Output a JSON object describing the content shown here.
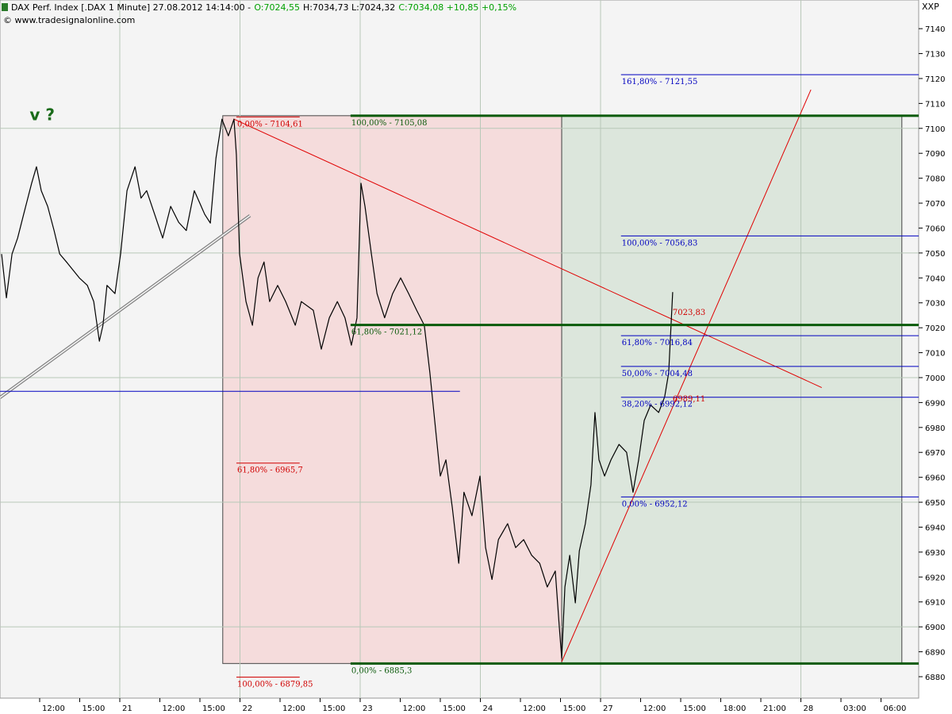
{
  "chart_data": {
    "type": "line",
    "title": "DAX Perf. Index [.DAX 1 Minute] 27.08.2012 14:14:00 -",
    "quote": [
      {
        "label": "O:7024,55",
        "color": "#00a000"
      },
      {
        "label": "H:7034,73 L:7024,32",
        "color": "#000000"
      },
      {
        "label": "C:7034,08 +10,85 +0,15%",
        "color": "#00a000"
      }
    ],
    "source": "© www.tradesignalonline.com",
    "corner_label": "XXP",
    "xlim": [
      -0.99,
      21.94
    ],
    "ylim": [
      6871.4,
      7151.5
    ],
    "xticks": [
      {
        "value": 0,
        "label": "12:00"
      },
      {
        "value": 1,
        "label": "15:00"
      },
      {
        "value": 2,
        "label": "21"
      },
      {
        "value": 3,
        "label": "12:00"
      },
      {
        "value": 4,
        "label": "15:00"
      },
      {
        "value": 5,
        "label": "22"
      },
      {
        "value": 6,
        "label": "12:00"
      },
      {
        "value": 7,
        "label": "15:00"
      },
      {
        "value": 8,
        "label": "23"
      },
      {
        "value": 9,
        "label": "12:00"
      },
      {
        "value": 10,
        "label": "15:00"
      },
      {
        "value": 11,
        "label": "24"
      },
      {
        "value": 12,
        "label": "12:00"
      },
      {
        "value": 13,
        "label": "15:00"
      },
      {
        "value": 14,
        "label": "27"
      },
      {
        "value": 15,
        "label": "12:00"
      },
      {
        "value": 16,
        "label": "15:00"
      },
      {
        "value": 17,
        "label": "18:00"
      },
      {
        "value": 18,
        "label": "21:00"
      },
      {
        "value": 19,
        "label": "28"
      },
      {
        "value": 20,
        "label": "03:00"
      },
      {
        "value": 21,
        "label": "06:00"
      }
    ],
    "yticks": [
      6880,
      6890,
      6900,
      6910,
      6920,
      6930,
      6940,
      6950,
      6960,
      6970,
      6980,
      6990,
      7000,
      7010,
      7020,
      7030,
      7040,
      7050,
      7060,
      7070,
      7080,
      7090,
      7100,
      7110,
      7120,
      7130,
      7140
    ],
    "xgrid": [
      2,
      5,
      8,
      11,
      14,
      19
    ],
    "ygrid": [
      6900,
      6950,
      7000,
      7050,
      7100
    ],
    "x": [
      -0.95,
      -0.83,
      -0.69,
      -0.55,
      -0.4,
      -0.2,
      -0.08,
      0.04,
      0.2,
      0.36,
      0.5,
      0.69,
      0.99,
      1.19,
      1.35,
      1.49,
      1.58,
      1.68,
      1.88,
      2.02,
      2.18,
      2.38,
      2.53,
      2.67,
      2.87,
      3.07,
      3.27,
      3.47,
      3.66,
      3.86,
      4.12,
      4.26,
      4.4,
      4.55,
      4.71,
      4.85,
      4.91,
      4.99,
      5.15,
      5.31,
      5.45,
      5.6,
      5.74,
      5.94,
      6.14,
      6.38,
      6.53,
      6.83,
      7.03,
      7.23,
      7.43,
      7.62,
      7.78,
      7.92,
      8.02,
      8.12,
      8.28,
      8.42,
      8.61,
      8.81,
      9.01,
      9.21,
      9.41,
      9.6,
      9.74,
      9.86,
      10.0,
      10.14,
      10.3,
      10.46,
      10.59,
      10.79,
      10.99,
      11.13,
      11.29,
      11.45,
      11.68,
      11.88,
      12.08,
      12.28,
      12.48,
      12.67,
      12.87,
      12.97,
      13.03,
      13.11,
      13.23,
      13.37,
      13.47,
      13.62,
      13.76,
      13.86,
      13.96,
      14.1,
      14.26,
      14.46,
      14.65,
      14.81,
      14.95,
      15.09,
      15.25,
      15.45,
      15.6,
      15.7,
      15.8
    ],
    "series": [
      {
        "color": "#000000",
        "values": [
          7049.6,
          7032,
          7049.6,
          7056,
          7065.5,
          7078,
          7084.6,
          7075,
          7068.7,
          7059,
          7049.6,
          7046,
          7040,
          7037,
          7030.5,
          7014.6,
          7021,
          7037,
          7033.7,
          7049.6,
          7075,
          7084.6,
          7072,
          7075,
          7065.5,
          7056,
          7068.7,
          7062.3,
          7059,
          7075,
          7065.5,
          7062,
          7088,
          7103.7,
          7097,
          7103.7,
          7089.4,
          7049.6,
          7030.5,
          7021,
          7040,
          7046.4,
          7030.5,
          7037,
          7030.5,
          7021,
          7030.5,
          7027,
          7011.4,
          7024,
          7030.5,
          7024,
          7013,
          7024,
          7078,
          7068.7,
          7049.6,
          7033.7,
          7024,
          7033.7,
          7040,
          7033.7,
          7027,
          7021,
          7001.9,
          6982.8,
          6960.5,
          6967,
          6947.8,
          6925.5,
          6954,
          6944.6,
          6960.5,
          6931.8,
          6919,
          6935,
          6941.4,
          6931.8,
          6935,
          6928.7,
          6925.5,
          6916,
          6922.4,
          6900,
          6887.3,
          6916,
          6928.7,
          6909.6,
          6930.5,
          6941.4,
          6957,
          6986,
          6967,
          6960.5,
          6967,
          6973.2,
          6970,
          6954,
          6967,
          6982.8,
          6989,
          6986,
          6992.3,
          7001.9,
          7034.3
        ]
      }
    ],
    "boxes": [
      {
        "color": "#f5dcdc",
        "x": [
          4.57,
          13.03
        ],
        "y": [
          7105.08,
          6885.3
        ]
      },
      {
        "color": "#dce6dc",
        "x": [
          13.03,
          21.52
        ],
        "y": [
          7105.08,
          6885.3
        ]
      }
    ],
    "levels": [
      {
        "value": 7121.55,
        "label": "161,80% - 7121,55",
        "color": "#0000c0",
        "xrange": [
          14.51,
          21.94
        ]
      },
      {
        "value": 7056.83,
        "label": "100,00% - 7056,83",
        "color": "#0000c0",
        "xrange": [
          14.51,
          21.94
        ]
      },
      {
        "value": 7016.84,
        "label": "61,80% - 7016,84",
        "color": "#0000c0",
        "xrange": [
          14.51,
          21.94
        ]
      },
      {
        "value": 7004.48,
        "label": "50,00% - 7004,48",
        "color": "#0000c0",
        "xrange": [
          14.51,
          21.94
        ]
      },
      {
        "value": 6992.12,
        "label": "38,20% - 6992,12",
        "color": "#0000c0",
        "xrange": [
          14.51,
          21.94
        ]
      },
      {
        "value": 6952.12,
        "label": "0,00% - 6952,12",
        "color": "#0000c0",
        "xrange": [
          14.51,
          21.94
        ]
      },
      {
        "value": 7104.61,
        "label": "0,00% - 7104,61",
        "color": "#d00000",
        "xrange": [
          4.91,
          6.49
        ]
      },
      {
        "value": 6965.7,
        "label": "61,80% - 6965,7",
        "color": "#d00000",
        "xrange": [
          4.91,
          6.49
        ]
      },
      {
        "value": 6879.85,
        "label": "100,00% - 6879,85",
        "color": "#d00000",
        "xrange": [
          4.91,
          6.49
        ]
      },
      {
        "value": 7105.08,
        "label": "100,00% - 7105,08",
        "color": "#0a5a0a",
        "xrange": [
          7.76,
          21.94
        ],
        "thick": true
      },
      {
        "value": 7021.12,
        "label": "61,80% - 7021,12",
        "color": "#0a5a0a",
        "xrange": [
          7.76,
          21.94
        ],
        "thick": true
      },
      {
        "value": 6885.3,
        "label": "0,00% - 6885,3",
        "color": "#0a5a0a",
        "xrange": [
          7.76,
          21.94
        ],
        "thick": true
      },
      {
        "value": 6994.5,
        "color": "#0000c0",
        "xrange": [
          -0.99,
          10.49
        ]
      }
    ],
    "lines": [
      {
        "color": "#e00000",
        "x": [
          4.85,
          19.52
        ],
        "y": [
          7103.7,
          6996
        ]
      },
      {
        "color": "#e00000",
        "x": [
          13.03,
          19.25
        ],
        "y": [
          6886,
          7115.5
        ]
      },
      {
        "color": "#808080",
        "x": [
          -0.99,
          5.25
        ],
        "y": [
          6992,
          7065
        ],
        "double": true
      }
    ],
    "annotations": [
      {
        "text": "7023,83",
        "x": 15.8,
        "y": 7023.83,
        "color": "#d00000"
      },
      {
        "text": "6989,11",
        "x": 15.8,
        "y": 6989.11,
        "color": "#d00000"
      },
      {
        "text": "v ?",
        "x": -0.25,
        "y": 7102,
        "color": "#1a6b1a",
        "bold": true
      }
    ]
  }
}
